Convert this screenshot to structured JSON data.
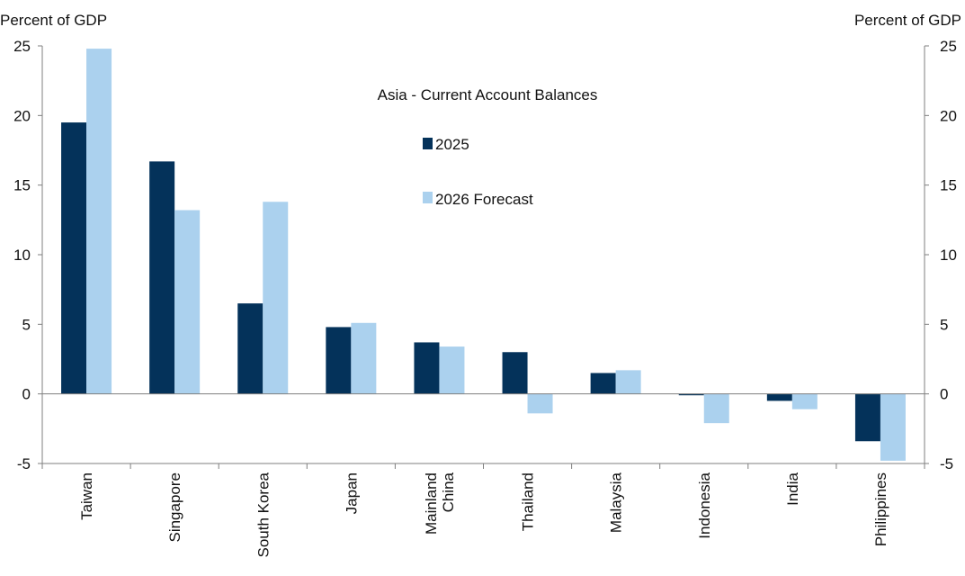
{
  "chart_data": {
    "type": "bar",
    "title": "Asia - Current Account Balances",
    "ylabel_left": "Percent of GDP",
    "ylabel_right": "Percent of GDP",
    "ylim": [
      -5,
      25
    ],
    "yticks": [
      25,
      20,
      15,
      10,
      5,
      0,
      -5
    ],
    "categories": [
      [
        "Taiwan"
      ],
      [
        "Singapore"
      ],
      [
        "South Korea"
      ],
      [
        "Japan"
      ],
      [
        "Mainland",
        "China"
      ],
      [
        "Thailand"
      ],
      [
        "Malaysia"
      ],
      [
        "Indonesia"
      ],
      [
        "India"
      ],
      [
        "Philippines"
      ]
    ],
    "series": [
      {
        "name": "2025",
        "color": "#04325a",
        "values": [
          19.5,
          16.7,
          6.5,
          4.8,
          3.7,
          3.0,
          1.5,
          -0.1,
          -0.5,
          -3.4
        ]
      },
      {
        "name": "2026 Forecast",
        "color": "#abd1ee",
        "values": [
          24.8,
          13.2,
          13.8,
          5.1,
          3.4,
          -1.4,
          1.7,
          -2.1,
          -1.1,
          -4.8
        ]
      }
    ],
    "legend_position": "top-center",
    "grid": false
  }
}
